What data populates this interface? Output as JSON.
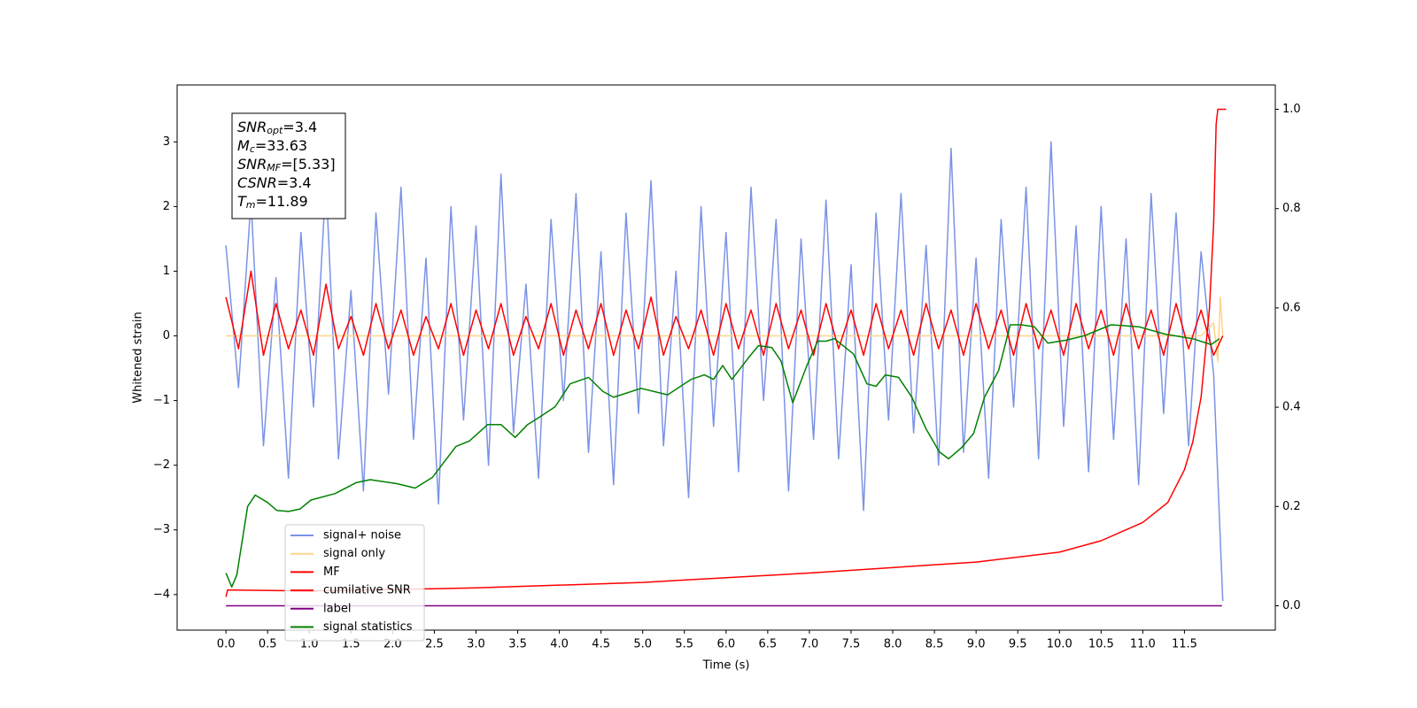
{
  "chart_data": {
    "type": "line",
    "xlabel": "Time (s)",
    "ylabel": "Whitened strain",
    "xlim": [
      -0.586,
      12.59
    ],
    "ylim": [
      -4.55,
      3.88
    ],
    "y2lim": [
      -0.049,
      1.049
    ],
    "xticks": [
      {
        "value": 0,
        "label": "0.0"
      },
      0.5,
      {
        "value": 1,
        "label": "1.0"
      },
      1.5,
      {
        "value": 2,
        "label": "2.0"
      },
      2.5,
      {
        "value": 3,
        "label": "3.0"
      },
      3.5,
      {
        "value": 4,
        "label": "4.0"
      },
      4.5,
      {
        "value": 5,
        "label": "5.0"
      },
      5.5,
      {
        "value": 6,
        "label": "6.0"
      },
      6.5,
      {
        "value": 7,
        "label": "7.0"
      },
      7.5,
      {
        "value": 8,
        "label": "8.0"
      },
      8.5,
      {
        "value": 9,
        "label": "9.0"
      },
      9.5,
      {
        "value": 10,
        "label": "10.0"
      },
      10.5,
      {
        "value": 11,
        "label": "11.0"
      },
      11.5
    ],
    "yticks": [
      {
        "value": -4,
        "label": "−4"
      },
      {
        "value": -3,
        "label": "−3"
      },
      {
        "value": -2,
        "label": "−2"
      },
      {
        "value": -1,
        "label": "−1"
      },
      0,
      1,
      2,
      3
    ],
    "y2ticks": [
      {
        "value": 0,
        "label": "0.0"
      },
      0.2,
      0.4,
      0.6,
      0.8,
      {
        "value": 1,
        "label": "1.0"
      }
    ],
    "annotations": [
      {
        "symbol": "SNR",
        "subscript": "opt",
        "suffix": "=3.4"
      },
      {
        "symbol": "M",
        "subscript": "c",
        "suffix": "=33.63"
      },
      {
        "symbol": "SNR",
        "subscript": "MF",
        "suffix": "=[5.33]"
      },
      {
        "symbol": "CSNR",
        "subscript": "",
        "suffix": "=3.4"
      },
      {
        "symbol": "T",
        "subscript": "m",
        "suffix": "=11.89"
      }
    ],
    "series": [
      {
        "name": "signal+ noise",
        "color": "#7b93e6",
        "x": [
          0,
          0.15,
          0.3,
          0.45,
          0.6,
          0.75,
          0.9,
          1.05,
          1.2,
          1.35,
          1.5,
          1.65,
          1.8,
          1.95,
          2.1,
          2.25,
          2.4,
          2.55,
          2.7,
          2.85,
          3,
          3.15,
          3.3,
          3.45,
          3.6,
          3.75,
          3.9,
          4.05,
          4.2,
          4.35,
          4.5,
          4.65,
          4.8,
          4.95,
          5.1,
          5.25,
          5.4,
          5.55,
          5.7,
          5.85,
          6,
          6.15,
          6.3,
          6.45,
          6.6,
          6.75,
          6.9,
          7.05,
          7.2,
          7.35,
          7.5,
          7.65,
          7.8,
          7.95,
          8.1,
          8.25,
          8.4,
          8.55,
          8.7,
          8.85,
          9,
          9.15,
          9.3,
          9.45,
          9.6,
          9.75,
          9.9,
          10.05,
          10.2,
          10.35,
          10.5,
          10.65,
          10.8,
          10.95,
          11.1,
          11.25,
          11.4,
          11.55,
          11.7,
          11.85,
          11.96
        ],
        "values": [
          1.4,
          -0.8,
          2.1,
          -1.7,
          0.9,
          -2.2,
          1.6,
          -1.1,
          2.4,
          -1.9,
          0.7,
          -2.4,
          1.9,
          -0.9,
          2.3,
          -1.6,
          1.2,
          -2.6,
          2.0,
          -1.3,
          1.7,
          -2.0,
          2.5,
          -1.5,
          0.8,
          -2.2,
          1.8,
          -1.0,
          2.2,
          -1.8,
          1.3,
          -2.3,
          1.9,
          -1.2,
          2.4,
          -1.7,
          1.0,
          -2.5,
          2.0,
          -1.4,
          1.6,
          -2.1,
          2.3,
          -1.0,
          1.8,
          -2.4,
          1.5,
          -1.6,
          2.1,
          -1.9,
          1.1,
          -2.7,
          1.9,
          -1.3,
          2.2,
          -1.5,
          1.4,
          -2.0,
          2.9,
          -1.8,
          1.2,
          -2.2,
          1.8,
          -1.1,
          2.3,
          -1.9,
          3.0,
          -1.4,
          1.7,
          -2.1,
          2.0,
          -1.6,
          1.5,
          -2.3,
          2.2,
          -1.2,
          1.9,
          -1.7,
          1.3,
          -0.6,
          -4.1
        ]
      },
      {
        "name": "signal only",
        "color": "#fdd58a",
        "x": [
          0,
          11.7,
          11.85,
          11.9,
          11.93,
          11.96
        ],
        "values": [
          0,
          0,
          0.2,
          -0.4,
          0.6,
          0
        ]
      },
      {
        "name": "MF",
        "color": "#ff0000",
        "x": [
          0,
          0.15,
          0.3,
          0.45,
          0.6,
          0.75,
          0.9,
          1.05,
          1.2,
          1.35,
          1.5,
          1.65,
          1.8,
          1.95,
          2.1,
          2.25,
          2.4,
          2.55,
          2.7,
          2.85,
          3,
          3.15,
          3.3,
          3.45,
          3.6,
          3.75,
          3.9,
          4.05,
          4.2,
          4.35,
          4.5,
          4.65,
          4.8,
          4.95,
          5.1,
          5.25,
          5.4,
          5.55,
          5.7,
          5.85,
          6,
          6.15,
          6.3,
          6.45,
          6.6,
          6.75,
          6.9,
          7.05,
          7.2,
          7.35,
          7.5,
          7.65,
          7.8,
          7.95,
          8.1,
          8.25,
          8.4,
          8.55,
          8.7,
          8.85,
          9,
          9.15,
          9.3,
          9.45,
          9.6,
          9.75,
          9.9,
          10.05,
          10.2,
          10.35,
          10.5,
          10.65,
          10.8,
          10.95,
          11.1,
          11.25,
          11.4,
          11.55,
          11.7,
          11.85,
          11.96
        ],
        "values": [
          0.6,
          -0.2,
          1.0,
          -0.3,
          0.5,
          -0.2,
          0.4,
          -0.3,
          0.8,
          -0.2,
          0.3,
          -0.3,
          0.5,
          -0.2,
          0.4,
          -0.3,
          0.3,
          -0.2,
          0.5,
          -0.3,
          0.4,
          -0.2,
          0.5,
          -0.3,
          0.3,
          -0.2,
          0.5,
          -0.3,
          0.4,
          -0.2,
          0.5,
          -0.3,
          0.4,
          -0.2,
          0.6,
          -0.3,
          0.3,
          -0.2,
          0.4,
          -0.3,
          0.5,
          -0.2,
          0.4,
          -0.3,
          0.5,
          -0.2,
          0.4,
          -0.3,
          0.5,
          -0.2,
          0.4,
          -0.3,
          0.5,
          -0.2,
          0.4,
          -0.3,
          0.5,
          -0.2,
          0.4,
          -0.3,
          0.5,
          -0.2,
          0.4,
          -0.3,
          0.5,
          -0.2,
          0.4,
          -0.3,
          0.5,
          -0.2,
          0.4,
          -0.3,
          0.5,
          -0.2,
          0.4,
          -0.3,
          0.5,
          -0.2,
          0.4,
          -0.3,
          0.0
        ]
      },
      {
        "name": "cumilative SNR",
        "color": "#ff0000",
        "axis": "y2",
        "x": [
          0,
          0.02,
          1,
          3,
          5,
          7,
          9,
          10,
          10.5,
          11,
          11.3,
          11.5,
          11.6,
          11.7,
          11.8,
          11.85,
          11.88,
          11.9,
          12
        ],
        "values": [
          0.018,
          0.032,
          0.03,
          0.036,
          0.047,
          0.066,
          0.088,
          0.108,
          0.131,
          0.168,
          0.208,
          0.274,
          0.33,
          0.42,
          0.6,
          0.77,
          0.97,
          1.0,
          1.0
        ]
      },
      {
        "name": "label",
        "color": "#800080",
        "axis": "y2",
        "x": [
          0,
          11.95
        ],
        "values": [
          0,
          0
        ]
      },
      {
        "name": "signal statistics",
        "color": "#008000",
        "axis": "y2",
        "x": [
          0,
          0.07,
          0.13,
          0.26,
          0.35,
          0.5,
          0.61,
          0.75,
          0.89,
          1.02,
          1.31,
          1.56,
          1.73,
          1.89,
          2.05,
          2.27,
          2.48,
          2.76,
          2.92,
          3.14,
          3.3,
          3.47,
          3.62,
          3.79,
          3.95,
          4.13,
          4.35,
          4.52,
          4.65,
          4.98,
          5.3,
          5.58,
          5.74,
          5.85,
          5.96,
          6.07,
          6.28,
          6.39,
          6.55,
          6.66,
          6.8,
          6.97,
          7.1,
          7.2,
          7.3,
          7.53,
          7.69,
          7.8,
          7.91,
          8.07,
          8.23,
          8.4,
          8.56,
          8.67,
          8.83,
          8.97,
          9.1,
          9.27,
          9.41,
          9.54,
          9.7,
          9.86,
          10.08,
          10.3,
          10.62,
          10.95,
          11.27,
          11.6,
          11.82,
          11.92
        ],
        "values": [
          0.066,
          0.038,
          0.062,
          0.2,
          0.223,
          0.208,
          0.192,
          0.19,
          0.195,
          0.213,
          0.226,
          0.248,
          0.254,
          0.25,
          0.246,
          0.237,
          0.259,
          0.321,
          0.332,
          0.365,
          0.365,
          0.339,
          0.365,
          0.383,
          0.401,
          0.447,
          0.46,
          0.432,
          0.42,
          0.438,
          0.425,
          0.456,
          0.465,
          0.456,
          0.484,
          0.456,
          0.502,
          0.524,
          0.52,
          0.493,
          0.409,
          0.484,
          0.533,
          0.533,
          0.538,
          0.507,
          0.447,
          0.442,
          0.465,
          0.46,
          0.42,
          0.356,
          0.31,
          0.296,
          0.319,
          0.347,
          0.42,
          0.474,
          0.566,
          0.566,
          0.562,
          0.529,
          0.535,
          0.544,
          0.566,
          0.562,
          0.547,
          0.538,
          0.526,
          0.538
        ]
      }
    ]
  }
}
